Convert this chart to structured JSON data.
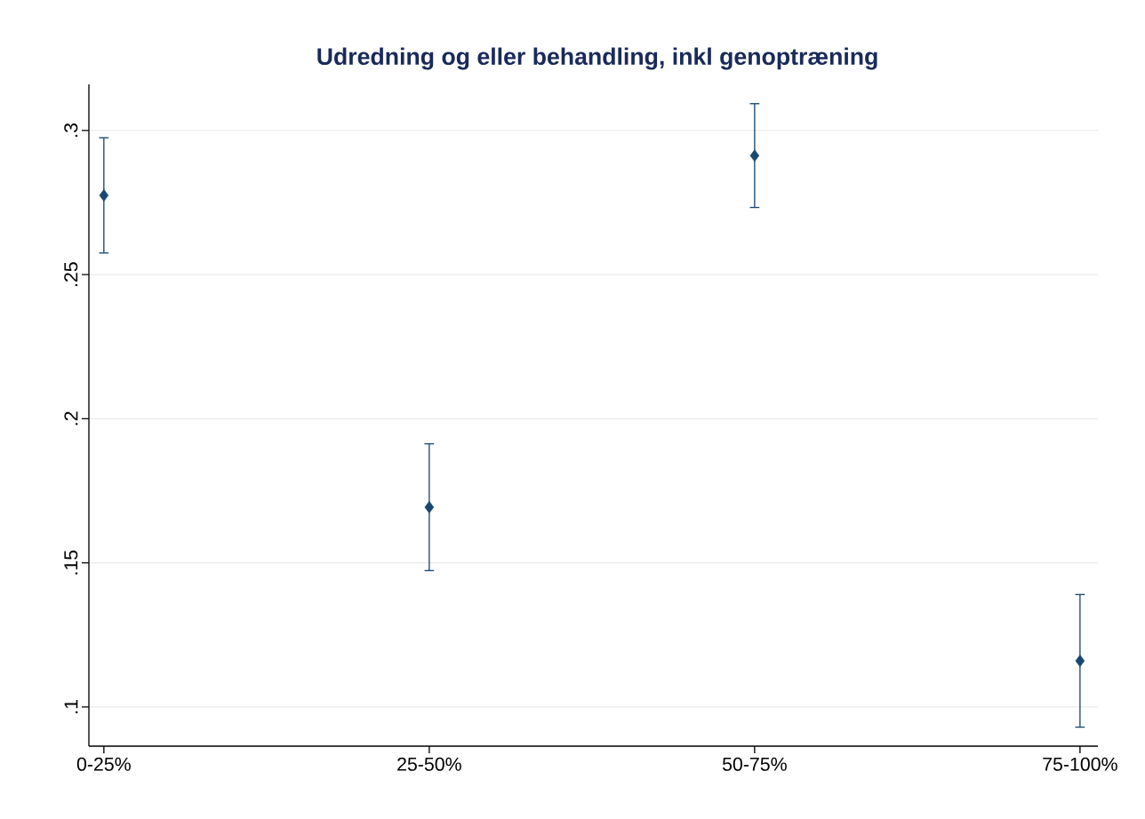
{
  "chart_data": {
    "type": "scatter",
    "title": "Udredning og eller behandling, inkl genoptræning",
    "categories": [
      "0-25%",
      "25-50%",
      "50-75%",
      "75-100%"
    ],
    "values": [
      0.2775,
      0.1693,
      0.2913,
      0.116
    ],
    "errors": [
      0.02,
      0.022,
      0.018,
      0.023
    ],
    "color": "#1a476f",
    "marker": "diamond",
    "grid": "y",
    "ylim": [
      0.0864,
      0.316
    ],
    "yticks": [
      {
        "value": 0.1,
        "label": ".1"
      },
      {
        "value": 0.15,
        "label": ".15"
      },
      {
        "value": 0.2,
        "label": ".2"
      },
      {
        "value": 0.25,
        "label": ".25"
      },
      {
        "value": 0.3,
        "label": ".3"
      }
    ]
  }
}
